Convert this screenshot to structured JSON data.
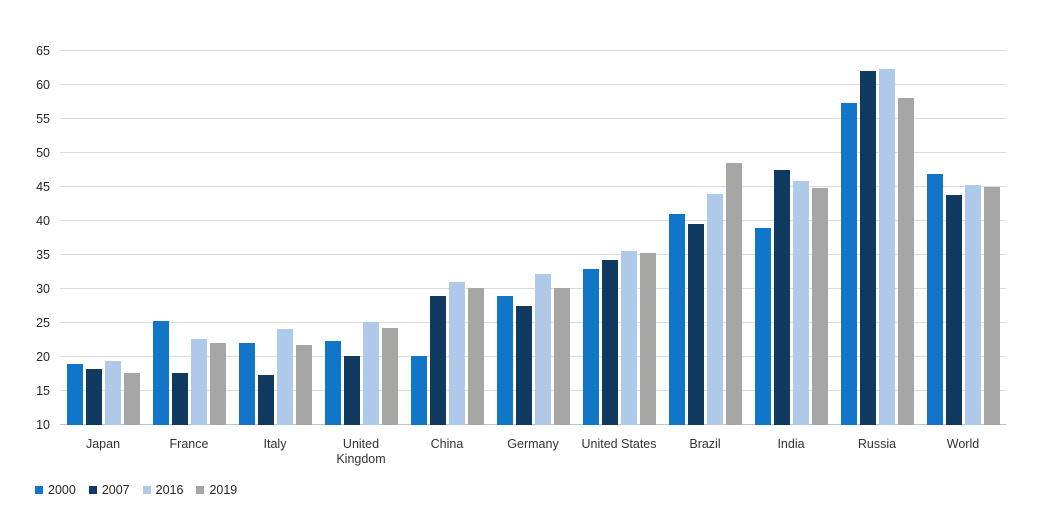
{
  "chart_data": {
    "type": "bar",
    "title": "",
    "xlabel": "",
    "ylabel": "",
    "ylim": [
      10,
      65
    ],
    "yticks": [
      10,
      15,
      20,
      25,
      30,
      35,
      40,
      45,
      50,
      55,
      60,
      65
    ],
    "grid": true,
    "legend_position": "bottom-left",
    "categories": [
      "Japan",
      "France",
      "Italy",
      "United Kingdom",
      "China",
      "Germany",
      "United States",
      "Brazil",
      "India",
      "Russia",
      "World"
    ],
    "series": [
      {
        "name": "2000",
        "color": "#1176c8",
        "values": [
          18.9,
          25.3,
          22.1,
          22.4,
          20.2,
          29.0,
          33.0,
          41.0,
          38.9,
          57.3,
          46.9
        ]
      },
      {
        "name": "2007",
        "color": "#103a60",
        "values": [
          18.2,
          17.6,
          17.3,
          20.1,
          29.0,
          27.5,
          34.2,
          39.5,
          47.5,
          62.1,
          43.8
        ]
      },
      {
        "name": "2016",
        "color": "#afcae8",
        "values": [
          19.4,
          22.6,
          24.1,
          25.1,
          31.1,
          32.2,
          35.6,
          43.9,
          45.9,
          62.4,
          45.3
        ]
      },
      {
        "name": "2019",
        "color": "#a6a6a4",
        "values": [
          17.7,
          22.0,
          21.8,
          24.3,
          30.1,
          30.1,
          35.3,
          48.6,
          44.9,
          58.1,
          45.0
        ]
      }
    ],
    "colors": {
      "gridline": "#dcdcdc",
      "baseline": "#c2c2c2",
      "tick_text": "#262626"
    }
  }
}
